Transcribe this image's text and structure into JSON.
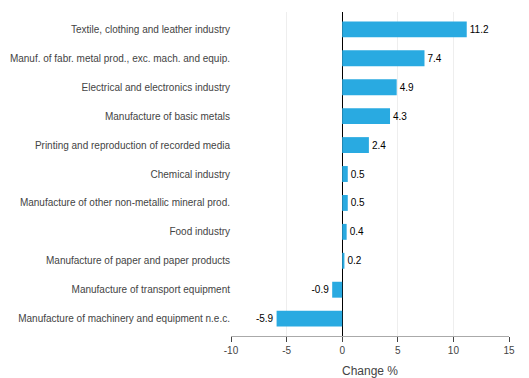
{
  "chart_data": {
    "type": "bar",
    "orientation": "horizontal",
    "categories": [
      "Manufacture of machinery and equipment n.e.c.",
      "Manufacture of transport equipment",
      "Manufacture of paper and paper products",
      "Food industry",
      "Manufacture of other non-metallic mineral prod.",
      "Chemical industry",
      "Printing and reproduction of recorded media",
      "Manufacture of basic metals",
      "Electrical and electronics industry",
      "Manuf. of fabr. metal prod., exc. mach. and equip.",
      "Textile, clothing and leather industry"
    ],
    "values": [
      -5.9,
      -0.9,
      0.2,
      0.4,
      0.5,
      0.5,
      2.4,
      4.3,
      4.9,
      7.4,
      11.2
    ],
    "color": "#29aae1",
    "xlabel": "Change %",
    "xlim": [
      -10,
      15
    ],
    "xticks": [
      -10,
      -5,
      0,
      5,
      10,
      15
    ],
    "grid": true,
    "data_labels": true
  }
}
